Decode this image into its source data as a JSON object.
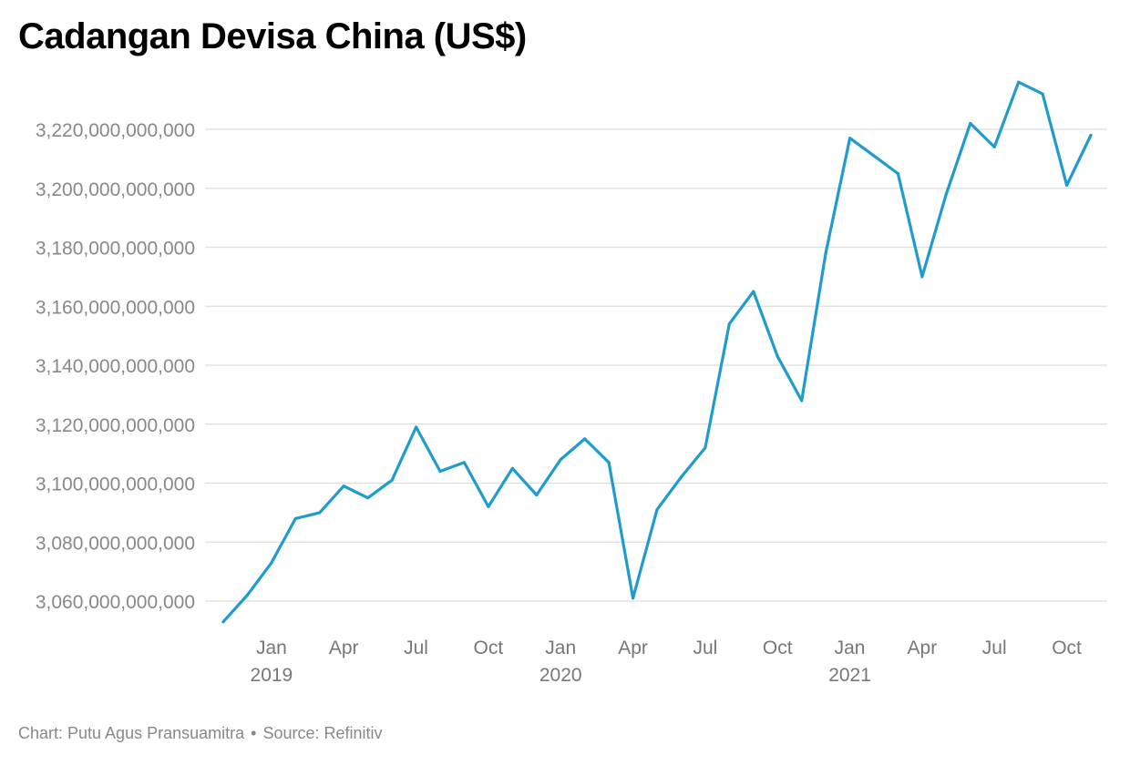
{
  "title": "Cadangan Devisa China (US$)",
  "footer": {
    "chart_by": "Chart: Putu Agus Pransuamitra",
    "separator": "•",
    "source": "Source: Refinitiv"
  },
  "colors": {
    "line": "#1f9ccc",
    "grid": "#dedede",
    "tick_text": "#888888",
    "title": "#000000"
  },
  "chart_data": {
    "type": "line",
    "title": "Cadangan Devisa China (US$)",
    "xlabel": "",
    "ylabel": "",
    "grid": true,
    "legend": "none",
    "x_range": [
      "2018-11",
      "2021-11"
    ],
    "ylim": [
      3050000000000,
      3235000000000
    ],
    "y_ticks": [
      3060000000000,
      3080000000000,
      3100000000000,
      3120000000000,
      3140000000000,
      3160000000000,
      3180000000000,
      3200000000000,
      3220000000000
    ],
    "y_tick_labels": [
      "3,060,000,000,000",
      "3,080,000,000,000",
      "3,100,000,000,000",
      "3,120,000,000,000",
      "3,140,000,000,000",
      "3,160,000,000,000",
      "3,180,000,000,000",
      "3,200,000,000,000",
      "3,220,000,000,000"
    ],
    "x_ticks": [
      {
        "date": "2019-01",
        "label": "Jan",
        "year": "2019"
      },
      {
        "date": "2019-04",
        "label": "Apr",
        "year": ""
      },
      {
        "date": "2019-07",
        "label": "Jul",
        "year": ""
      },
      {
        "date": "2019-10",
        "label": "Oct",
        "year": ""
      },
      {
        "date": "2020-01",
        "label": "Jan",
        "year": "2020"
      },
      {
        "date": "2020-04",
        "label": "Apr",
        "year": ""
      },
      {
        "date": "2020-07",
        "label": "Jul",
        "year": ""
      },
      {
        "date": "2020-10",
        "label": "Oct",
        "year": ""
      },
      {
        "date": "2021-01",
        "label": "Jan",
        "year": "2021"
      },
      {
        "date": "2021-04",
        "label": "Apr",
        "year": ""
      },
      {
        "date": "2021-07",
        "label": "Jul",
        "year": ""
      },
      {
        "date": "2021-10",
        "label": "Oct",
        "year": ""
      }
    ],
    "x": [
      "2018-11",
      "2018-12",
      "2019-01",
      "2019-02",
      "2019-03",
      "2019-04",
      "2019-05",
      "2019-06",
      "2019-07",
      "2019-08",
      "2019-09",
      "2019-10",
      "2019-11",
      "2019-12",
      "2020-01",
      "2020-02",
      "2020-03",
      "2020-04",
      "2020-05",
      "2020-06",
      "2020-07",
      "2020-08",
      "2020-09",
      "2020-10",
      "2020-11",
      "2020-12",
      "2021-01",
      "2021-02",
      "2021-03",
      "2021-04",
      "2021-05",
      "2021-06",
      "2021-07",
      "2021-08",
      "2021-09",
      "2021-10",
      "2021-11"
    ],
    "series": [
      {
        "values": [
          3053000000000,
          3062000000000,
          3073000000000,
          3088000000000,
          3090000000000,
          3099000000000,
          3095000000000,
          3101000000000,
          3119000000000,
          3104000000000,
          3107000000000,
          3092000000000,
          3105000000000,
          3096000000000,
          3108000000000,
          3115000000000,
          3107000000000,
          3061000000000,
          3091000000000,
          3102000000000,
          3112000000000,
          3154000000000,
          3165000000000,
          3143000000000,
          3128000000000,
          3178000000000,
          3217000000000,
          3211000000000,
          3205000000000,
          3170000000000,
          3198000000000,
          3222000000000,
          3214000000000,
          3236000000000,
          3232000000000,
          3201000000000,
          3218000000000
        ]
      }
    ]
  }
}
